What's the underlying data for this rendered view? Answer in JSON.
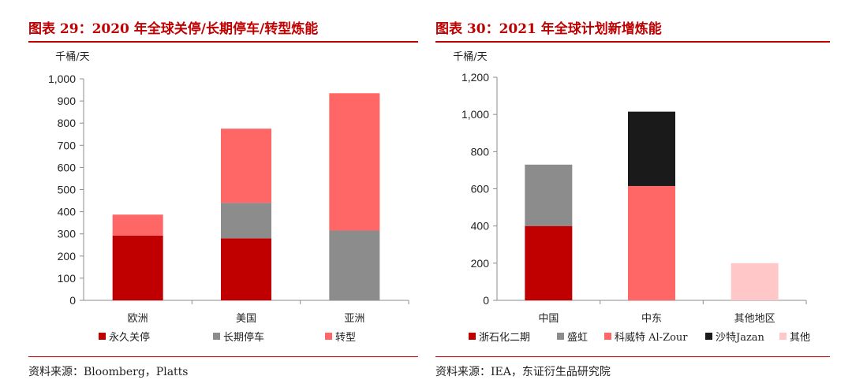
{
  "chart_data": [
    {
      "type": "bar",
      "stacked": true,
      "title": "图表 29：2020 年全球关停/长期停车/转型炼能",
      "unit": "千桶/天",
      "categories": [
        "欧洲",
        "美国",
        "亚洲"
      ],
      "series": [
        {
          "name": "永久关停",
          "color": "#c00000",
          "values": [
            292,
            280,
            0
          ]
        },
        {
          "name": "长期停车",
          "color": "#8c8c8c",
          "values": [
            0,
            160,
            315
          ]
        },
        {
          "name": "转型",
          "color": "#ff6666",
          "values": [
            95,
            335,
            620
          ]
        }
      ],
      "ylim": [
        0,
        1000
      ],
      "yticks": [
        "0",
        "100",
        "200",
        "300",
        "400",
        "500",
        "600",
        "700",
        "800",
        "900",
        "1,000"
      ],
      "grid": false,
      "legend": "bottom",
      "source": "资料来源：Bloomberg，Platts"
    },
    {
      "type": "bar",
      "stacked": true,
      "title": "图表 30：2021 年全球计划新增炼能",
      "unit": "千桶/天",
      "categories": [
        "中国",
        "中东",
        "其他地区"
      ],
      "series": [
        {
          "name": "浙石化二期",
          "color": "#c00000",
          "values": [
            400,
            0,
            0
          ]
        },
        {
          "name": "盛虹",
          "color": "#8c8c8c",
          "values": [
            330,
            0,
            0
          ]
        },
        {
          "name": "科威特 Al-Zour",
          "color": "#ff6666",
          "values": [
            0,
            615,
            0
          ]
        },
        {
          "name": "沙特Jazan",
          "color": "#1a1a1a",
          "values": [
            0,
            400,
            0
          ]
        },
        {
          "name": "其他",
          "color": "#ffc7c7",
          "values": [
            0,
            0,
            200
          ]
        }
      ],
      "ylim": [
        0,
        1200
      ],
      "yticks": [
        "0",
        "200",
        "400",
        "600",
        "800",
        "1,000",
        "1,200"
      ],
      "grid": false,
      "legend": "bottom",
      "source": "资料来源：IEA，东证衍生品研究院"
    }
  ]
}
